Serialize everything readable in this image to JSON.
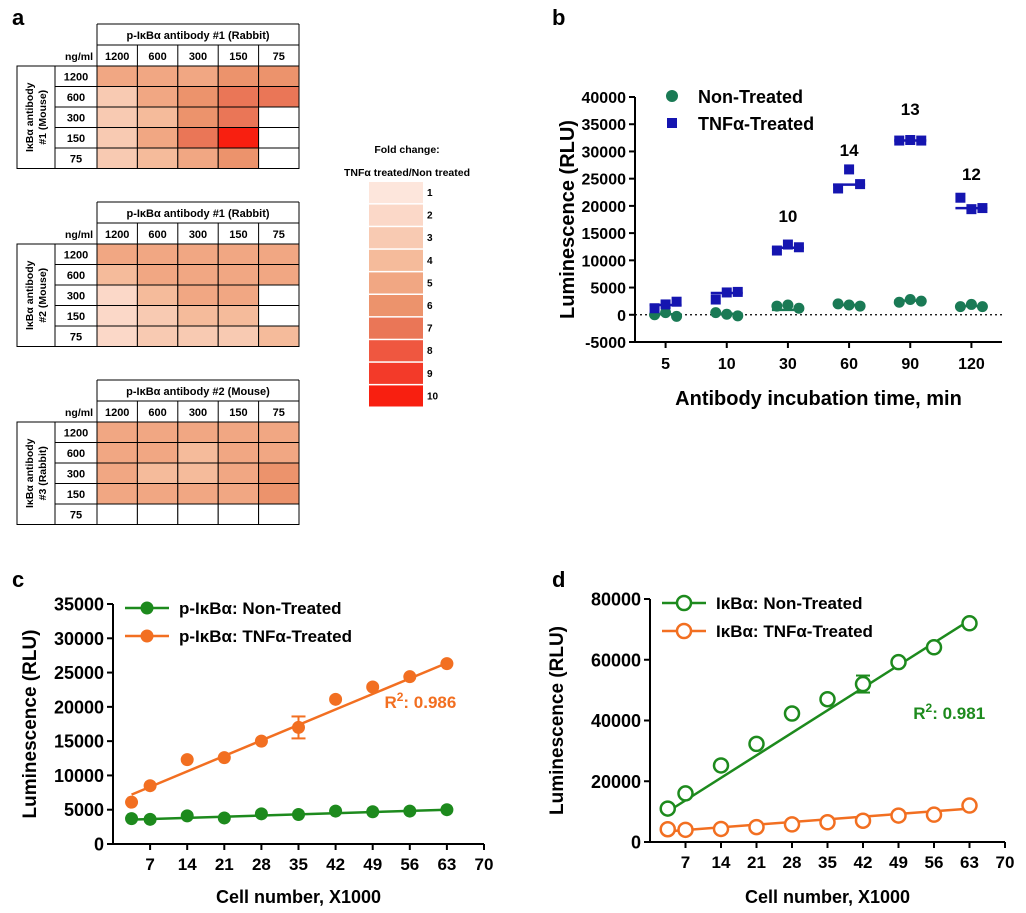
{
  "panel_labels": {
    "a": "a",
    "b": "b",
    "c": "c",
    "d": "d"
  },
  "chart_data": [
    {
      "id": "a",
      "type": "heatmap",
      "unit_label": "ng/ml",
      "columns": [
        "1200",
        "600",
        "300",
        "150",
        "75"
      ],
      "rows": [
        "1200",
        "600",
        "300",
        "150",
        "75"
      ],
      "heatmaps": [
        {
          "title": "p-IκBα antibody #1 (Rabbit)",
          "row_title": [
            "IκBα antibody",
            "#1 (Mouse)"
          ],
          "values": [
            [
              5,
              5,
              5,
              6,
              6
            ],
            [
              3,
              5,
              6,
              7,
              7
            ],
            [
              3,
              4,
              6,
              7,
              null
            ],
            [
              3,
              5,
              7,
              10,
              null
            ],
            [
              3,
              4,
              5,
              6,
              null
            ]
          ]
        },
        {
          "title": "p-IκBα antibody #1 (Rabbit)",
          "row_title": [
            "IκBα antibody",
            "#2 (Mouse)"
          ],
          "values": [
            [
              5,
              5,
              5,
              5,
              5
            ],
            [
              4,
              5,
              5,
              5,
              5
            ],
            [
              2,
              4,
              5,
              5,
              null
            ],
            [
              2,
              3,
              4,
              4,
              null
            ],
            [
              2,
              3,
              3,
              3,
              4
            ]
          ]
        },
        {
          "title": "p-IκBα antibody #2 (Mouse)",
          "row_title": [
            "IκBα antibody",
            "#3 (Rabbit)"
          ],
          "values": [
            [
              5,
              5,
              5,
              5,
              5
            ],
            [
              5,
              5,
              4,
              5,
              5
            ],
            [
              5,
              4,
              4,
              5,
              6
            ],
            [
              5,
              5,
              5,
              5,
              6
            ],
            [
              null,
              null,
              null,
              null,
              null
            ]
          ]
        }
      ],
      "legend": {
        "title_line1": "Fold change:",
        "title_line2": "TNFα treated/Non treated",
        "levels": [
          "1",
          "2",
          "3",
          "4",
          "5",
          "6",
          "7",
          "8",
          "9",
          "10"
        ],
        "colors": [
          "#fde6dc",
          "#fbd8c8",
          "#f8cab2",
          "#f5bb9b",
          "#f1a783",
          "#ec936c",
          "#ea7657",
          "#ef5740",
          "#f33a29",
          "#f81f10"
        ]
      }
    },
    {
      "id": "b",
      "type": "scatter",
      "xlabel": "Antibody incubation time, min",
      "ylabel": "Luminescence (RLU)",
      "categories": [
        "5",
        "10",
        "30",
        "60",
        "90",
        "120"
      ],
      "yticks": [
        "40000",
        "35000",
        "30000",
        "25000",
        "20000",
        "15000",
        "10000",
        "5000",
        "0",
        "-5000"
      ],
      "ylim": [
        -5000,
        40000
      ],
      "baseline": 0,
      "legend_position": "top-left",
      "series": [
        {
          "name": "Non-Treated",
          "color": "#1a7a55",
          "marker": "circle",
          "points": [
            [
              0,
              100,
              0
            ],
            [
              0,
              200,
              400
            ],
            [
              0,
              100,
              -300
            ],
            [
              1,
              200,
              400
            ],
            [
              1,
              400,
              100
            ],
            [
              1,
              100,
              -200
            ],
            [
              2,
              900,
              1600
            ],
            [
              2,
              1400,
              1800
            ],
            [
              2,
              1200,
              1200
            ],
            [
              3,
              1800,
              2000
            ],
            [
              3,
              1900,
              1800
            ],
            [
              3,
              1800,
              1600
            ],
            [
              4,
              2600,
              2300
            ],
            [
              4,
              2900,
              2800
            ],
            [
              4,
              2700,
              2500
            ],
            [
              5,
              1600,
              1500
            ],
            [
              5,
              1900,
              1900
            ],
            [
              5,
              1700,
              1500
            ]
          ]
        },
        {
          "name": "TNFα-Treated",
          "color": "#1515b0",
          "marker": "square",
          "points": [
            [
              0,
              1800,
              1200
            ],
            [
              0,
              2000,
              1900
            ],
            [
              0,
              2000,
              2400
            ],
            [
              1,
              4000,
              2800
            ],
            [
              1,
              4100,
              4100
            ],
            [
              1,
              4100,
              4200
            ],
            [
              2,
              12300,
              11800
            ],
            [
              2,
              12500,
              12900
            ],
            [
              2,
              12300,
              12400
            ],
            [
              3,
              23900,
              23200
            ],
            [
              3,
              24000,
              26700
            ],
            [
              3,
              23800,
              24000
            ],
            [
              4,
              32000,
              32000
            ],
            [
              4,
              32100,
              32100
            ],
            [
              4,
              32000,
              32000
            ],
            [
              5,
              19600,
              21500
            ],
            [
              5,
              19600,
              19400
            ],
            [
              5,
              19600,
              19600
            ]
          ]
        }
      ],
      "annotations": [
        {
          "category": "30",
          "text": "10",
          "y": 17000
        },
        {
          "category": "60",
          "text": "14",
          "y": 29200
        },
        {
          "category": "90",
          "text": "13",
          "y": 36700
        },
        {
          "category": "120",
          "text": "12",
          "y": 24800
        }
      ]
    },
    {
      "id": "c",
      "type": "line",
      "xlabel": "Cell number, X1000",
      "ylabel": "Luminescence (RLU)",
      "xticks": [
        "7",
        "14",
        "21",
        "28",
        "35",
        "42",
        "49",
        "56",
        "63",
        "70"
      ],
      "yticks": [
        "35000",
        "30000",
        "25000",
        "20000",
        "15000",
        "10000",
        "5000",
        "0"
      ],
      "xlim": [
        0,
        70
      ],
      "ylim": [
        0,
        35000
      ],
      "legend_position": "top-left",
      "annotation": {
        "text": "R",
        "superscript": "2",
        "suffix": ": 0.986",
        "color": "#f26f21",
        "x": 58,
        "y": 19800
      },
      "series": [
        {
          "name": "p-IκBα: Non-Treated",
          "color": "#1d8a1d",
          "marker": "filled-circle",
          "x": [
            3.5,
            7,
            14,
            21,
            28,
            35,
            42,
            49,
            56,
            63
          ],
          "y": [
            3700,
            3600,
            4100,
            3800,
            4400,
            4300,
            4800,
            4700,
            4800,
            5000
          ],
          "fit": [
            [
              3.5,
              3550
            ],
            [
              63,
              5000
            ]
          ]
        },
        {
          "name": "p-IκBα: TNFα-Treated",
          "color": "#f26f21",
          "marker": "filled-circle",
          "x": [
            3.5,
            7,
            14,
            21,
            28,
            35,
            42,
            49,
            56,
            63
          ],
          "y": [
            6100,
            8500,
            12300,
            12600,
            15000,
            17000,
            21100,
            22900,
            24400,
            26300
          ],
          "error": [
            0,
            0,
            0,
            0,
            0,
            1600,
            0,
            0,
            0,
            0
          ],
          "fit": [
            [
              3.5,
              7200
            ],
            [
              63,
              26400
            ]
          ]
        }
      ]
    },
    {
      "id": "d",
      "type": "line",
      "xlabel": "Cell number, X1000",
      "ylabel": "Luminescence (RLU)",
      "xticks": [
        "7",
        "14",
        "21",
        "28",
        "35",
        "42",
        "49",
        "56",
        "63",
        "70"
      ],
      "yticks": [
        "80000",
        "60000",
        "40000",
        "20000",
        "0"
      ],
      "xlim": [
        0,
        70
      ],
      "ylim": [
        0,
        80000
      ],
      "legend_position": "top-left",
      "annotation": {
        "text": "R",
        "superscript": "2",
        "suffix": ": 0.981",
        "color": "#1d8a1d",
        "x": 59,
        "y": 40500
      },
      "series": [
        {
          "name": "IκBα: Non-Treated",
          "color": "#1d8a1d",
          "marker": "open-circle",
          "x": [
            3.5,
            7,
            14,
            21,
            28,
            35,
            42,
            49,
            56,
            63
          ],
          "y": [
            11000,
            16000,
            25200,
            32300,
            42300,
            47000,
            52000,
            59200,
            64100,
            72000
          ],
          "error": [
            0,
            0,
            0,
            0,
            0,
            0,
            2800,
            0,
            0,
            0
          ],
          "fit": [
            [
              3.5,
              10000
            ],
            [
              63,
              73000
            ]
          ]
        },
        {
          "name": "IκBα: TNFα-Treated",
          "color": "#f26f21",
          "marker": "open-circle",
          "x": [
            3.5,
            7,
            14,
            21,
            28,
            35,
            42,
            49,
            56,
            63
          ],
          "y": [
            4200,
            4000,
            4300,
            4900,
            5800,
            6500,
            7000,
            8700,
            9000,
            12000
          ],
          "fit": [
            [
              3.5,
              3500
            ],
            [
              63,
              11000
            ]
          ]
        }
      ]
    }
  ]
}
